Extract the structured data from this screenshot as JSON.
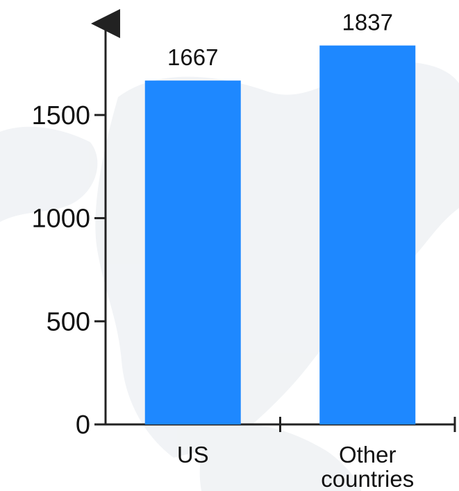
{
  "chart_data": {
    "type": "bar",
    "categories": [
      "US",
      "Other countries"
    ],
    "category_lines": [
      [
        "US"
      ],
      [
        "Other",
        "countries"
      ]
    ],
    "values": [
      1667,
      1837
    ],
    "data_labels": [
      "1667",
      "1837"
    ],
    "yticks": [
      0,
      500,
      1000,
      1500
    ],
    "ytick_labels": [
      "0",
      "500",
      "1000",
      "1500"
    ],
    "ylim": [
      0,
      1950
    ],
    "grid": false,
    "legend": "none",
    "title": "",
    "xlabel": "",
    "ylabel": "",
    "colors": {
      "bar": "#1E88FF",
      "axis": "#222222",
      "background_map": "#E6EAEE"
    }
  }
}
